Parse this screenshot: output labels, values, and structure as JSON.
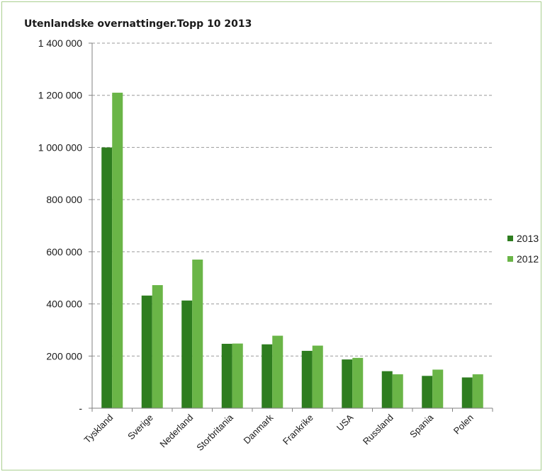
{
  "chart_data": {
    "type": "bar",
    "title": "Utenlandske overnattinger.Topp 10 2013",
    "xlabel": "",
    "ylabel": "",
    "ylim": [
      0,
      1400000
    ],
    "y_ticks": [
      0,
      200000,
      400000,
      600000,
      800000,
      1000000,
      1200000,
      1400000
    ],
    "y_tick_labels": [
      "-",
      "200 000",
      "400 000",
      "600 000",
      "800 000",
      "1 000 000",
      "1 200 000",
      "1 400 000"
    ],
    "grid": true,
    "legend_position": "right",
    "categories": [
      "Tyskland",
      "Sverige",
      "Nederland",
      "Storbritania",
      "Danmark",
      "Frankrike",
      "USA",
      "Russland",
      "Spania",
      "Polen"
    ],
    "series": [
      {
        "name": "2013",
        "color": "#2e7d1f",
        "values": [
          1000000,
          432000,
          413000,
          247000,
          245000,
          220000,
          187000,
          142000,
          124000,
          118000
        ]
      },
      {
        "name": "2012",
        "color": "#6ab547",
        "values": [
          1210000,
          472000,
          570000,
          248000,
          278000,
          240000,
          193000,
          130000,
          148000,
          130000
        ]
      }
    ]
  }
}
